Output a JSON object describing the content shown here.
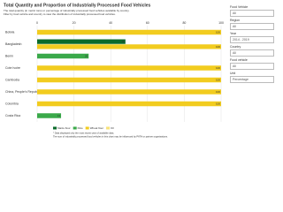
{
  "chart_data": {
    "type": "bar",
    "orientation": "horizontal",
    "title": "Total Quantity and Proportion of Industrially Processed Food Vehicles",
    "subtitle": [
      "The total quantity (in metric tons) or percentage of industrially processed food vehicles available by country.",
      "Filter by food vehicle and country to view the distribution of industrially processed food vehicles."
    ],
    "categories": [
      "Bolivia",
      "Bangladesh",
      "Benin",
      "Cote Ivoire",
      "Cambodia",
      "China, People's Republic of",
      "Colombia",
      "Costa Rica"
    ],
    "series": [
      {
        "name": "Maize flour",
        "color": "#0b6b2b",
        "values": [
          null,
          48,
          null,
          null,
          null,
          null,
          null,
          null
        ]
      },
      {
        "name": "Rice",
        "color": "#3aa94a",
        "values": [
          null,
          null,
          28,
          null,
          null,
          null,
          null,
          13
        ]
      },
      {
        "name": "Wheat flour",
        "color": "#f2cc1f",
        "values": [
          100,
          100,
          null,
          100,
          100,
          100,
          100,
          null
        ]
      },
      {
        "name": "Oil",
        "color": "#f7e27a",
        "values": [
          null,
          null,
          null,
          null,
          null,
          null,
          null,
          null
        ]
      }
    ],
    "xlim": [
      0,
      100
    ],
    "xticks": [
      0,
      20,
      40,
      60,
      80,
      100
    ],
    "grid": true,
    "footnotes": [
      "* Data displayed only the most recent year of available data.",
      "The sum of industrially processed food vehicles in this chart may be influenced by PATH or partner organizations."
    ]
  },
  "filters": [
    {
      "label": "Food Vehicle",
      "value": "All"
    },
    {
      "label": "Region",
      "value": "All"
    },
    {
      "label": "Year",
      "value": "2014 - 2019"
    },
    {
      "label": "Country",
      "value": "All"
    },
    {
      "label": "Food vehicle",
      "value": "All"
    },
    {
      "label": "Unit",
      "value": "Percentage"
    }
  ]
}
